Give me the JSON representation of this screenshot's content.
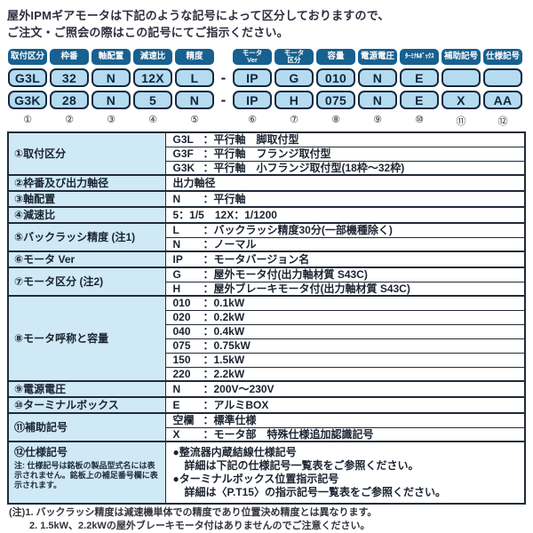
{
  "title": {
    "line1": "屋外IPMギアモータは下記のような記号によって区分しておりますので、",
    "line2": "ご注文・ご照会の際はこの記号にてご指示ください。"
  },
  "colors": {
    "header_pill_bg": "#17608f",
    "code_pill_bg": "#b4dbf0",
    "code_pill_border": "#16293f",
    "label_cell_bg": "#cfe9f7",
    "table_border": "#212b36",
    "text": "#1b2330"
  },
  "code_diagram": {
    "columns": [
      {
        "header": "取付区分",
        "row1": "G3L",
        "row2": "G3K",
        "num": "①"
      },
      {
        "header": "枠番",
        "row1": "32",
        "row2": "28",
        "num": "②"
      },
      {
        "header": "軸配置",
        "row1": "N",
        "row2": "N",
        "num": "③"
      },
      {
        "header": "減速比",
        "row1": "12X",
        "row2": "5",
        "num": "④"
      },
      {
        "header": "精度",
        "row1": "L",
        "row2": "N",
        "num": "⑤"
      },
      {
        "dash": true,
        "glyph": "-"
      },
      {
        "header": "モータ",
        "header2": "Ver",
        "row1": "IP",
        "row2": "IP",
        "num": "⑥"
      },
      {
        "header": "モータ",
        "header2": "区分",
        "row1": "G",
        "row2": "H",
        "num": "⑦"
      },
      {
        "header": "容量",
        "row1": "010",
        "row2": "075",
        "num": "⑧"
      },
      {
        "header": "電源電圧",
        "row1": "N",
        "row2": "N",
        "num": "⑨"
      },
      {
        "header": "ﾀｰﾐﾅﾙﾎﾞｯｸｽ",
        "small": true,
        "row1": "E",
        "row2": "E",
        "num": "⑩"
      },
      {
        "header": "補助記号",
        "row1": "",
        "row2": "X",
        "num": "⑪"
      },
      {
        "header": "仕様記号",
        "row1": "",
        "row2": "AA",
        "num": "⑫"
      }
    ]
  },
  "table": {
    "groups": [
      {
        "label": "①取付区分",
        "lines": [
          {
            "code": "G3L",
            "desc": "：平行軸　脚取付型"
          },
          {
            "code": "G3F",
            "desc": "：平行軸　フランジ取付型"
          },
          {
            "code": "G3K",
            "desc": "：平行軸　小フランジ取付型(18枠〜32枠)"
          }
        ]
      },
      {
        "label": "②枠番及び出力軸径",
        "lines": [
          {
            "text": "出力軸径"
          }
        ]
      },
      {
        "label": "③軸配置",
        "lines": [
          {
            "code": "N",
            "desc": "：平行軸"
          }
        ]
      },
      {
        "label": "④減速比",
        "lines": [
          {
            "text": "5：1/5　12X：1/1200"
          }
        ]
      },
      {
        "label": "⑤バックラッシ精度 (注1)",
        "lines": [
          {
            "code": "L",
            "desc": "：バックラッシ精度30分(一部機種除く)"
          },
          {
            "code": "N",
            "desc": "：ノーマル"
          }
        ]
      },
      {
        "label": "⑥モータ Ver",
        "lines": [
          {
            "code": "IP",
            "desc": "：モータバージョン名"
          }
        ]
      },
      {
        "label": "⑦モータ区分 (注2)",
        "lines": [
          {
            "code": "G",
            "desc": "：屋外モータ付(出力軸材質 S43C)"
          },
          {
            "code": "H",
            "desc": "：屋外ブレーキモータ付(出力軸材質 S43C)"
          }
        ]
      },
      {
        "label": "⑧モータ呼称と容量",
        "lines": [
          {
            "code": "010",
            "desc": "：0.1kW"
          },
          {
            "code": "020",
            "desc": "：0.2kW"
          },
          {
            "code": "040",
            "desc": "：0.4kW"
          },
          {
            "code": "075",
            "desc": "：0.75kW"
          },
          {
            "code": "150",
            "desc": "：1.5kW"
          },
          {
            "code": "220",
            "desc": "：2.2kW"
          }
        ]
      },
      {
        "label": "⑨電源電圧",
        "lines": [
          {
            "code": "N",
            "desc": "：200V〜230V"
          }
        ]
      },
      {
        "label": "⑩ターミナルボックス",
        "lines": [
          {
            "code": "E",
            "desc": "：アルミBOX"
          }
        ]
      },
      {
        "label": "⑪補助記号",
        "lines": [
          {
            "code": "空欄",
            "desc": "：標準仕様"
          },
          {
            "code": "X",
            "desc": "：モータ部　特殊仕様追加認識記号"
          }
        ]
      },
      {
        "label": "⑫仕様記号",
        "note": "注: 仕様記号は銘板の製品型式名には表示されません。銘板上の補足番号欄に表示されます。",
        "bullets": [
          {
            "text": "●整流器内蔵結線仕様記号"
          },
          {
            "text": "詳細は下記の仕様記号一覧表をご参照ください。",
            "indent": true
          },
          {
            "text": "●ターミナルボックス位置指示記号"
          },
          {
            "text": "詳細は〈P.T15〉の指示記号一覧表をご参照ください。",
            "indent": true
          }
        ]
      }
    ]
  },
  "footnotes": {
    "line1": "(注)1. バックラッシ精度は減速機単体での精度であり位置決め精度とは異なります。",
    "line2": "2. 1.5kW、2.2kWの屋外ブレーキモータ付はありませんのでご注意ください。"
  }
}
